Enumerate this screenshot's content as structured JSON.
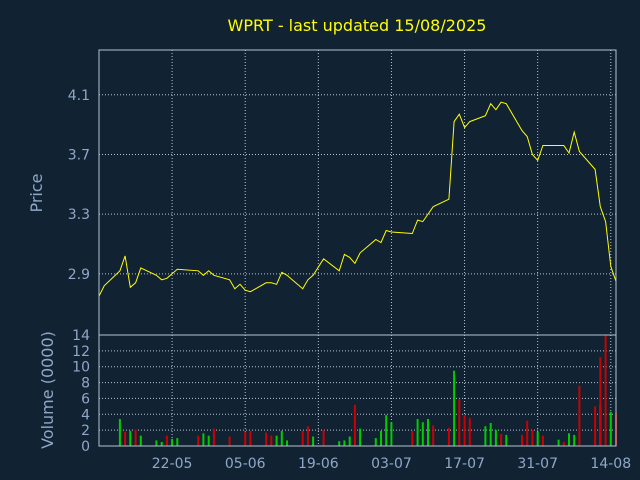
{
  "title": "WPRT - last updated 15/08/2025",
  "colors": {
    "background": "#112233",
    "title": "#ffff00",
    "axis_text": "#8fa8c8",
    "frame": "#b8c4d0",
    "grid": "#b8c4d0",
    "price_line": "#ffff00",
    "volume_up": "#00cc00",
    "volume_down": "#cc0000"
  },
  "chart_data": [
    {
      "type": "line",
      "ylabel": "Price",
      "ylim": [
        2.49,
        4.4
      ],
      "yticks": [
        "2.9",
        "3.3",
        "3.7",
        "4.1"
      ],
      "grid": true,
      "x": [
        "2025-05-08",
        "2025-05-09",
        "2025-05-12",
        "2025-05-13",
        "2025-05-14",
        "2025-05-15",
        "2025-05-16",
        "2025-05-19",
        "2025-05-20",
        "2025-05-21",
        "2025-05-22",
        "2025-05-23",
        "2025-05-27",
        "2025-05-28",
        "2025-05-29",
        "2025-05-30",
        "2025-06-02",
        "2025-06-03",
        "2025-06-04",
        "2025-06-05",
        "2025-06-06",
        "2025-06-09",
        "2025-06-10",
        "2025-06-11",
        "2025-06-12",
        "2025-06-13",
        "2025-06-16",
        "2025-06-17",
        "2025-06-18",
        "2025-06-20",
        "2025-06-23",
        "2025-06-24",
        "2025-06-25",
        "2025-06-26",
        "2025-06-27",
        "2025-06-30",
        "2025-07-01",
        "2025-07-02",
        "2025-07-03",
        "2025-07-07",
        "2025-07-08",
        "2025-07-09",
        "2025-07-10",
        "2025-07-11",
        "2025-07-14",
        "2025-07-15",
        "2025-07-16",
        "2025-07-17",
        "2025-07-18",
        "2025-07-21",
        "2025-07-22",
        "2025-07-23",
        "2025-07-24",
        "2025-07-25",
        "2025-07-28",
        "2025-07-29",
        "2025-07-30",
        "2025-07-31",
        "2025-08-01",
        "2025-08-04",
        "2025-08-05",
        "2025-08-06",
        "2025-08-07",
        "2025-08-08",
        "2025-08-11",
        "2025-08-12",
        "2025-08-13",
        "2025-08-14",
        "2025-08-15"
      ],
      "xticks": [
        "22-05",
        "05-06",
        "19-06",
        "03-07",
        "17-07",
        "31-07",
        "14-08"
      ],
      "series": [
        {
          "values": [
            2.75,
            2.82,
            2.92,
            3.02,
            2.81,
            2.84,
            2.94,
            2.89,
            2.86,
            2.87,
            2.9,
            2.93,
            2.92,
            2.89,
            2.92,
            2.89,
            2.86,
            2.8,
            2.83,
            2.79,
            2.78,
            2.84,
            2.84,
            2.83,
            2.91,
            2.89,
            2.8,
            2.86,
            2.89,
            3.0,
            2.92,
            3.03,
            3.01,
            2.97,
            3.04,
            3.13,
            3.11,
            3.19,
            3.18,
            3.17,
            3.26,
            3.25,
            3.3,
            3.35,
            3.4,
            3.92,
            3.97,
            3.88,
            3.92,
            3.96,
            4.04,
            4.0,
            4.05,
            4.04,
            3.86,
            3.82,
            3.7,
            3.66,
            3.76,
            3.76,
            3.76,
            3.71,
            3.85,
            3.72,
            3.6,
            3.35,
            3.25,
            2.95,
            2.85
          ]
        }
      ]
    },
    {
      "type": "bar",
      "ylabel": "Volume (0000)",
      "ylim": [
        0,
        14
      ],
      "yticks": [
        "0",
        "2",
        "4",
        "6",
        "8",
        "10",
        "12",
        "14"
      ],
      "grid": true,
      "x": [
        "2025-05-08",
        "2025-05-09",
        "2025-05-12",
        "2025-05-13",
        "2025-05-14",
        "2025-05-15",
        "2025-05-16",
        "2025-05-19",
        "2025-05-20",
        "2025-05-21",
        "2025-05-22",
        "2025-05-23",
        "2025-05-27",
        "2025-05-28",
        "2025-05-29",
        "2025-05-30",
        "2025-06-02",
        "2025-06-03",
        "2025-06-04",
        "2025-06-05",
        "2025-06-06",
        "2025-06-09",
        "2025-06-10",
        "2025-06-11",
        "2025-06-12",
        "2025-06-13",
        "2025-06-16",
        "2025-06-17",
        "2025-06-18",
        "2025-06-20",
        "2025-06-23",
        "2025-06-24",
        "2025-06-25",
        "2025-06-26",
        "2025-06-27",
        "2025-06-30",
        "2025-07-01",
        "2025-07-02",
        "2025-07-03",
        "2025-07-07",
        "2025-07-08",
        "2025-07-09",
        "2025-07-10",
        "2025-07-11",
        "2025-07-14",
        "2025-07-15",
        "2025-07-16",
        "2025-07-17",
        "2025-07-18",
        "2025-07-21",
        "2025-07-22",
        "2025-07-23",
        "2025-07-24",
        "2025-07-25",
        "2025-07-28",
        "2025-07-29",
        "2025-07-30",
        "2025-07-31",
        "2025-08-01",
        "2025-08-04",
        "2025-08-05",
        "2025-08-06",
        "2025-08-07",
        "2025-08-08",
        "2025-08-11",
        "2025-08-12",
        "2025-08-13",
        "2025-08-14",
        "2025-08-15"
      ],
      "series": [
        {
          "name": "up",
          "values": [
            0,
            0,
            3.4,
            0,
            1.9,
            0,
            1.3,
            0.7,
            0.5,
            0,
            0.9,
            1.0,
            0,
            1.6,
            1.3,
            0,
            0,
            0,
            0,
            0,
            0,
            0,
            0,
            1.3,
            1.9,
            0.7,
            0,
            0,
            1.2,
            0,
            0.6,
            0.7,
            1.2,
            0,
            2.2,
            1.0,
            1.9,
            3.9,
            3.0,
            0,
            3.4,
            3.0,
            3.4,
            0,
            0,
            9.5,
            0,
            0,
            0,
            2.5,
            2.9,
            2.0,
            0,
            1.4,
            0,
            0,
            0,
            1.8,
            0,
            0.8,
            0,
            1.6,
            1.4,
            0,
            0,
            5.2,
            0,
            4.3,
            0
          ]
        },
        {
          "name": "down",
          "values": [
            0,
            0,
            0,
            1.8,
            0,
            2.1,
            0,
            0,
            0,
            1.3,
            0,
            0,
            1.3,
            0,
            0,
            2.2,
            1.2,
            0,
            0,
            1.8,
            1.9,
            1.7,
            1.3,
            0,
            0,
            0,
            1.9,
            2.5,
            0,
            2.0,
            0,
            0,
            0,
            5.2,
            0,
            0,
            0,
            0,
            0,
            1.9,
            0,
            0,
            0,
            2.6,
            2.3,
            0,
            5.9,
            3.9,
            3.5,
            0,
            0,
            0,
            1.5,
            0,
            1.4,
            3.2,
            2.0,
            0,
            1.3,
            0,
            0.5,
            0,
            0,
            7.6,
            5.0,
            11.2,
            14.0,
            0,
            4.2
          ]
        }
      ]
    }
  ]
}
